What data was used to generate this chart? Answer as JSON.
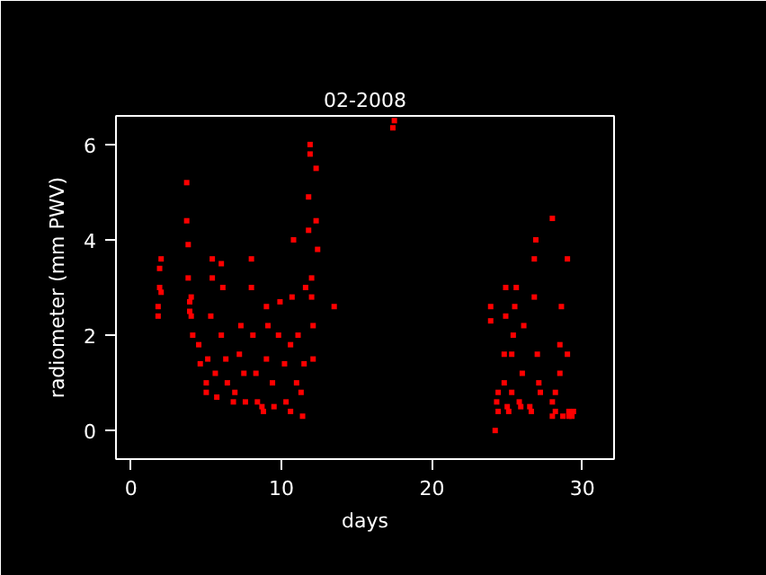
{
  "chart_data": {
    "type": "scatter",
    "title": "02-2008",
    "xlabel": "days",
    "ylabel": "radiometer (mm PWV)",
    "xlim": [
      -1.0,
      32.1
    ],
    "ylim": [
      -0.6,
      6.6
    ],
    "xticks": [
      0,
      10,
      20,
      30
    ],
    "yticks": [
      0,
      2,
      4,
      6
    ],
    "grid": false,
    "marker": "square",
    "series": [
      {
        "color": "#ff0000",
        "x": [
          1.8,
          1.9,
          2.0,
          1.9,
          1.8,
          2.0,
          3.7,
          3.7,
          3.8,
          3.8,
          3.9,
          3.9,
          4.0,
          4.0,
          4.1,
          4.5,
          4.6,
          5.0,
          5.0,
          5.1,
          5.3,
          5.4,
          5.4,
          5.6,
          5.7,
          6.0,
          6.0,
          6.1,
          6.3,
          6.4,
          6.8,
          6.9,
          7.2,
          7.3,
          7.5,
          7.6,
          8.0,
          8.0,
          8.1,
          8.3,
          8.4,
          8.7,
          8.8,
          9.0,
          9.0,
          9.1,
          9.4,
          9.5,
          9.8,
          9.9,
          10.2,
          10.3,
          10.6,
          10.6,
          10.7,
          10.8,
          11.0,
          11.1,
          11.3,
          11.4,
          11.5,
          11.6,
          11.8,
          11.8,
          11.9,
          11.9,
          12.0,
          12.0,
          12.1,
          12.1,
          12.3,
          12.3,
          12.4,
          13.5,
          17.5,
          17.4,
          23.9,
          23.9,
          24.2,
          24.3,
          24.4,
          24.4,
          24.8,
          24.8,
          24.9,
          24.9,
          25.0,
          25.1,
          25.3,
          25.3,
          25.4,
          25.5,
          25.6,
          25.8,
          25.9,
          26.0,
          26.1,
          26.5,
          26.6,
          26.8,
          26.8,
          26.9,
          27.0,
          27.1,
          27.2,
          28.0,
          28.0,
          28.2,
          28.2,
          28.5,
          28.5,
          28.6,
          28.0,
          28.7,
          29.0,
          29.0,
          29.1,
          29.1,
          29.3,
          29.4
        ],
        "values": [
          2.4,
          3.0,
          3.6,
          3.4,
          2.6,
          2.9,
          5.2,
          4.4,
          3.9,
          3.2,
          2.7,
          2.5,
          2.8,
          2.4,
          2.0,
          1.8,
          1.4,
          1.0,
          0.8,
          1.5,
          2.4,
          3.2,
          3.6,
          1.2,
          0.7,
          2.0,
          3.5,
          3.0,
          1.5,
          1.0,
          0.6,
          0.8,
          1.6,
          2.2,
          1.2,
          0.6,
          3.6,
          3.0,
          2.0,
          1.2,
          0.6,
          0.5,
          0.4,
          1.5,
          2.6,
          2.2,
          1.0,
          0.5,
          2.0,
          2.7,
          1.4,
          0.6,
          0.4,
          1.8,
          2.8,
          4.0,
          1.0,
          2.0,
          0.8,
          0.3,
          1.4,
          3.0,
          4.2,
          4.9,
          6.0,
          5.8,
          3.2,
          2.8,
          2.2,
          1.5,
          4.4,
          5.5,
          3.8,
          2.6,
          6.5,
          6.35,
          2.3,
          2.6,
          0.0,
          0.6,
          0.4,
          0.8,
          1.0,
          1.6,
          2.4,
          3.0,
          0.5,
          0.4,
          0.8,
          1.6,
          2.0,
          2.6,
          3.0,
          0.6,
          0.5,
          1.2,
          2.2,
          0.5,
          0.4,
          2.8,
          3.6,
          4.0,
          1.6,
          1.0,
          0.8,
          0.6,
          0.3,
          0.4,
          0.8,
          1.2,
          1.8,
          2.6,
          4.45,
          0.3,
          3.6,
          1.6,
          0.4,
          0.3,
          0.3,
          0.4
        ]
      }
    ]
  }
}
